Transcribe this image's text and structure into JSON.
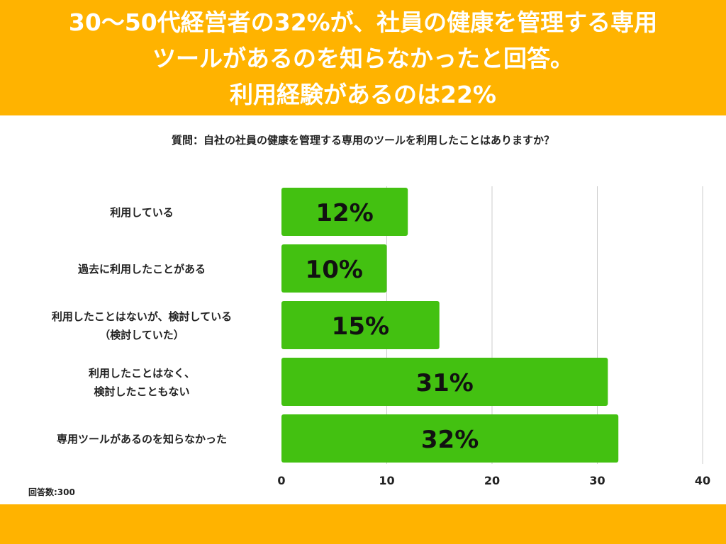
{
  "header": {
    "title_lines": [
      "30〜50代経営者の32%が、社員の健康を管理する専用",
      "ツールがあるのを知らなかったと回答。",
      "利用経験があるのは22%"
    ]
  },
  "question": "質問：自社の社員の健康を管理する専用のツールを利用したことはありますか？",
  "note": "回答数:300",
  "colors": {
    "accent": "#FFB300",
    "bar": "#43C111"
  },
  "chart_data": {
    "type": "bar",
    "orientation": "horizontal",
    "categories": [
      [
        "利用している"
      ],
      [
        "過去に利用したことがある"
      ],
      [
        "利用したことはないが、検討している",
        "（検討していた）"
      ],
      [
        "利用したことはなく、",
        "検討したこともない"
      ],
      [
        "専用ツールがあるのを知らなかった"
      ]
    ],
    "values": [
      12,
      10,
      15,
      31,
      32
    ],
    "data_labels": [
      "12%",
      "10%",
      "15%",
      "31%",
      "32%"
    ],
    "xticks": [
      0,
      10,
      20,
      30,
      40
    ],
    "xlim": [
      0,
      40
    ],
    "grid": true
  }
}
